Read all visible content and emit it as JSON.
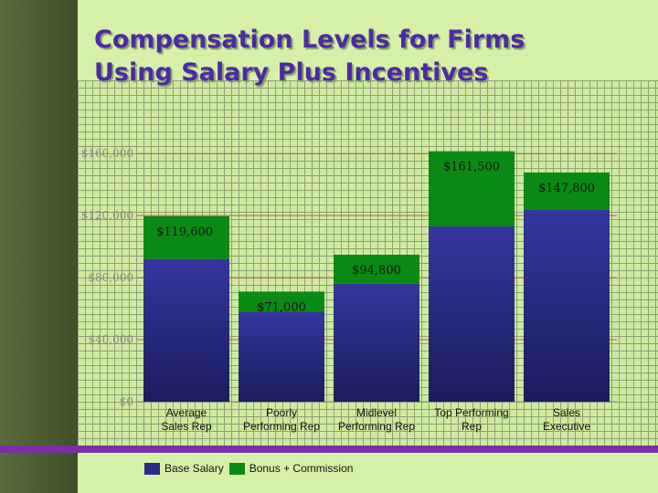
{
  "title_line1": "Compensation Levels for Firms",
  "title_line2": "Using Salary Plus Incentives",
  "colors": {
    "base_salary": "#2a2a8a",
    "bonus_commission": "#0a8a14",
    "gridline": "#c05a5a",
    "background": "#d7f0a8"
  },
  "chart_data": {
    "type": "bar",
    "stacked": true,
    "categories": [
      [
        "Average",
        "Sales Rep"
      ],
      [
        "Poorly",
        "Performing Rep"
      ],
      [
        "Midlevel",
        "Performing Rep"
      ],
      [
        "Top Performing",
        "Rep"
      ],
      [
        "Sales",
        "Executive"
      ]
    ],
    "series": [
      {
        "name": "Base Salary",
        "values": [
          92000,
          58000,
          76000,
          113000,
          124000
        ]
      },
      {
        "name": "Bonus + Commission",
        "values": [
          27600,
          13000,
          18800,
          48500,
          23800
        ]
      }
    ],
    "totals": [
      119600,
      71000,
      94800,
      161500,
      147800
    ],
    "total_labels": [
      "$119,600",
      "$71,000",
      "$94,800",
      "$161,500",
      "$147,800"
    ],
    "y_ticks": [
      0,
      40000,
      80000,
      120000,
      160000
    ],
    "y_tick_labels": [
      "$0",
      "$40,000",
      "$80,000",
      "$120,000",
      "$160,000"
    ],
    "ylim": [
      0,
      166000
    ],
    "legend": [
      "Base Salary",
      "Bonus + Commission"
    ],
    "legend_position": "bottom-left"
  }
}
